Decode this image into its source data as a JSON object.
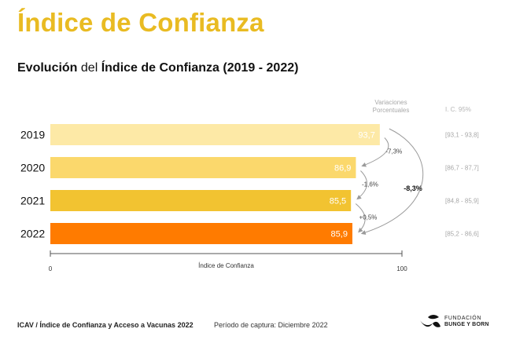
{
  "header": {
    "title": "Índice de Confianza",
    "subtitle_bold1": "Evolución",
    "subtitle_light": " del ",
    "subtitle_bold2": "Índice de Confianza (2019 - 2022)"
  },
  "chart_data": {
    "type": "bar",
    "orientation": "horizontal",
    "categories": [
      "2019",
      "2020",
      "2021",
      "2022"
    ],
    "values": [
      93.7,
      86.9,
      85.5,
      85.9
    ],
    "value_labels": [
      "93,7",
      "86,9",
      "85,5",
      "85,9"
    ],
    "bar_colors": [
      "#fde9a6",
      "#fbd86c",
      "#f2c331",
      "#ff7b00"
    ],
    "label_colors": [
      "#ffffff",
      "#ffffff",
      "#ffffff",
      "#ffffff"
    ],
    "xlabel": "Índice de Confianza",
    "xlim": [
      0,
      100
    ],
    "x_ticks": [
      "0",
      "100"
    ],
    "ci_header": "I. C. 95%",
    "ci_labels": [
      "[93,1 - 93,8]",
      "[86,7 - 87,7]",
      "[84,8 - 85,9]",
      "[85,2 - 86,6]"
    ],
    "variations_header": [
      "Variaciones",
      "Porcentuales"
    ],
    "variations": [
      "-7,3%",
      "-1,6%",
      "+0,5%"
    ],
    "total_variation": "-8,3%"
  },
  "footer": {
    "source": "ICAV / Índice de Confianza y Acceso a Vacunas 2022",
    "period": "Período de captura: Diciembre 2022",
    "logo_line1": "FUNDACIÓN",
    "logo_line2": "BUNGE Y BORN"
  },
  "colors": {
    "title": "#e9bb22",
    "arrow": "#9a9a9a",
    "muted_text": "#a8a8a8"
  }
}
